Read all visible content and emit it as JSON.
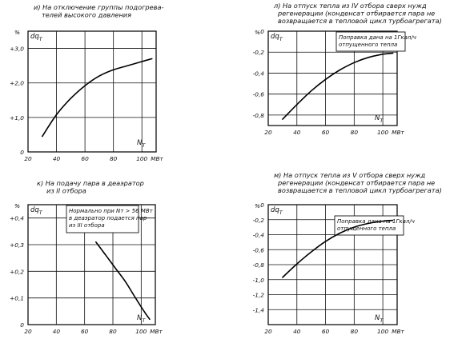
{
  "chart_data": [
    {
      "id": "i",
      "type": "line",
      "caption": [
        "и) На отключение группы подогрева-",
        "телей высокого давления"
      ],
      "ylabel": "dq_T",
      "yunit": "%",
      "xlabel": "N_T",
      "xunit": "МВт",
      "xlim": [
        20,
        110
      ],
      "ylim": [
        0,
        3.5
      ],
      "x_ticks": [
        "20",
        "40",
        "60",
        "80",
        "100"
      ],
      "y_ticks": [
        {
          "v": 0,
          "t": "0"
        },
        {
          "v": 1.0,
          "t": "+1,0"
        },
        {
          "v": 2.0,
          "t": "+2,0"
        },
        {
          "v": 3.0,
          "t": "+3,0"
        }
      ],
      "note": [],
      "series": [
        {
          "x": [
            30,
            40,
            50,
            60,
            70,
            80,
            90,
            100,
            107
          ],
          "y": [
            0.45,
            1.08,
            1.55,
            1.92,
            2.2,
            2.38,
            2.5,
            2.62,
            2.7
          ]
        }
      ]
    },
    {
      "id": "l",
      "type": "line",
      "caption": [
        "л) На отпуск тепла из IV отбора сверх нужд",
        "регенерации (конденсат отбирается пара не",
        "возвращается в тепловой цикл турбоагрегата)"
      ],
      "ylabel": "dq_T",
      "yunit": "%",
      "xlabel": "N_T",
      "xunit": "МВт",
      "xlim": [
        20,
        110
      ],
      "ylim": [
        -0.9,
        0
      ],
      "x_ticks": [
        "20",
        "40",
        "60",
        "80",
        "100"
      ],
      "y_ticks": [
        {
          "v": 0,
          "t": "0"
        },
        {
          "v": -0.2,
          "t": "-0,2"
        },
        {
          "v": -0.4,
          "t": "-0,4"
        },
        {
          "v": -0.6,
          "t": "-0,6"
        },
        {
          "v": -0.8,
          "t": "-0,8"
        }
      ],
      "note": [
        "Поправка дана на 1Гкал/ч",
        "отпущенного тепла"
      ],
      "series": [
        {
          "x": [
            30,
            40,
            50,
            60,
            70,
            80,
            90,
            100,
            107
          ],
          "y": [
            -0.84,
            -0.7,
            -0.57,
            -0.46,
            -0.37,
            -0.3,
            -0.25,
            -0.22,
            -0.21
          ]
        }
      ]
    },
    {
      "id": "k",
      "type": "line",
      "caption": [
        "к) На подачу пара в деаэратор",
        "из II отбора"
      ],
      "ylabel": "dq_T",
      "yunit": "%",
      "xlabel": "N_T",
      "xunit": "МВт",
      "xlim": [
        20,
        110
      ],
      "ylim": [
        0,
        0.45
      ],
      "x_ticks": [
        "20",
        "40",
        "60",
        "80",
        "100"
      ],
      "y_ticks": [
        {
          "v": 0,
          "t": "0"
        },
        {
          "v": 0.1,
          "t": "+0,1"
        },
        {
          "v": 0.2,
          "t": "+0,2"
        },
        {
          "v": 0.3,
          "t": "+0,3"
        },
        {
          "v": 0.4,
          "t": "+0,4"
        }
      ],
      "note": [
        "Нормально при N_T > 56 МВт",
        "в деаэратор подается пар",
        "из III отбора"
      ],
      "series": [
        {
          "x": [
            68,
            75,
            82,
            89,
            96,
            102,
            106
          ],
          "y": [
            0.31,
            0.26,
            0.21,
            0.16,
            0.1,
            0.05,
            0.02
          ]
        }
      ]
    },
    {
      "id": "m",
      "type": "line",
      "caption": [
        "м) На отпуск тепла из V отбора сверх нужд",
        "регенерации (конденсат отбирается пара не",
        "возвращается в тепловой цикл турбоагрегата)"
      ],
      "ylabel": "dq_T",
      "yunit": "%",
      "xlabel": "N_T",
      "xunit": "МВт",
      "xlim": [
        20,
        110
      ],
      "ylim": [
        -1.6,
        0
      ],
      "x_ticks": [
        "20",
        "40",
        "60",
        "80",
        "100"
      ],
      "y_ticks": [
        {
          "v": 0,
          "t": "0"
        },
        {
          "v": -0.2,
          "t": "-0,2"
        },
        {
          "v": -0.4,
          "t": "-0,4"
        },
        {
          "v": -0.6,
          "t": "-0,6"
        },
        {
          "v": -0.8,
          "t": "-0,8"
        },
        {
          "v": -1.0,
          "t": "-1,0"
        },
        {
          "v": -1.2,
          "t": "-1,2"
        },
        {
          "v": -1.4,
          "t": "-1,4"
        }
      ],
      "note": [
        "Поправка дана на 1Гкал/ч",
        "отпущенного тепла"
      ],
      "series": [
        {
          "x": [
            30,
            40,
            50,
            60,
            70,
            80,
            90,
            100,
            107
          ],
          "y": [
            -0.97,
            -0.79,
            -0.63,
            -0.49,
            -0.38,
            -0.3,
            -0.25,
            -0.22,
            -0.21
          ]
        }
      ]
    }
  ]
}
